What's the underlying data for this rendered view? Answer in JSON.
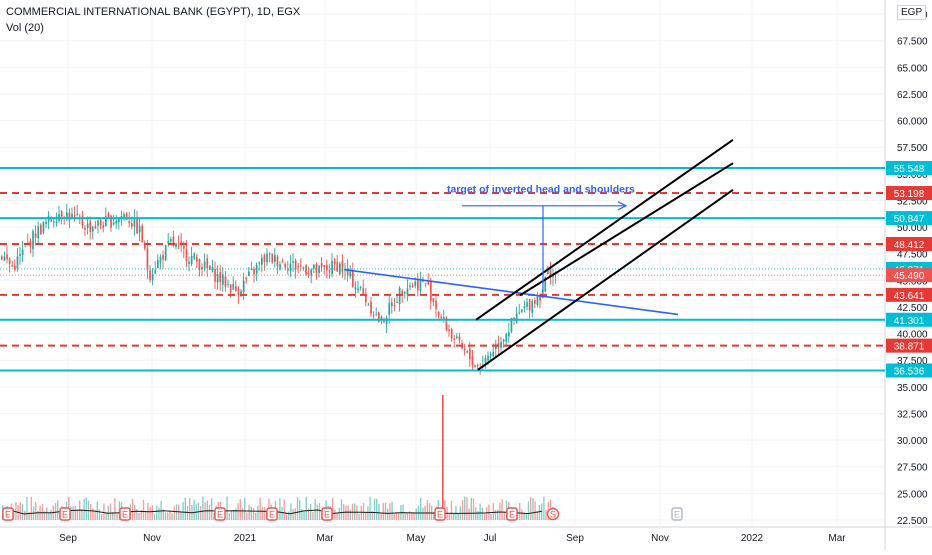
{
  "header": {
    "title": "COMMERCIAL INTERNATIONAL BANK (EGYPT), 1D, EGX",
    "volume_label": "Vol (20)",
    "currency": "EGP"
  },
  "colors": {
    "up": "#26a69a",
    "down": "#ef5350",
    "support_line": "#00bcd4",
    "resistance_line": "#e53935",
    "channel": "#000000",
    "neckline": "#2962ff",
    "annotation": "#2962ff",
    "volume_spike": "#ef5350"
  },
  "annotation": {
    "text": "target of inverted head and shoulders"
  },
  "chart_data": {
    "type": "candlestick",
    "title": "COMMERCIAL INTERNATIONAL BANK (EGYPT), 1D, EGX",
    "xlabel": "",
    "ylabel": "",
    "ylim": [
      22.0,
      70.0
    ],
    "y_ticks": [
      "22.500",
      "25.000",
      "27.500",
      "30.000",
      "32.500",
      "35.000",
      "37.500",
      "40.000",
      "42.500",
      "45.000",
      "47.500",
      "50.000",
      "52.500",
      "55.000",
      "57.500",
      "60.000",
      "62.500",
      "65.000",
      "67.500",
      "70.000"
    ],
    "x_ticks": [
      "Sep",
      "Nov",
      "2021",
      "Mar",
      "May",
      "Jul",
      "Sep",
      "Nov",
      "2022",
      "Mar"
    ],
    "grid": true,
    "horizontal_levels": [
      {
        "label": "55.548",
        "value": 55.548,
        "style": "solid",
        "color": "#00bcd4"
      },
      {
        "label": "53.198",
        "value": 53.198,
        "style": "dashed",
        "color": "#e53935"
      },
      {
        "label": "50.847",
        "value": 50.847,
        "style": "solid",
        "color": "#00bcd4"
      },
      {
        "label": "48.412",
        "value": 48.412,
        "style": "dashed",
        "color": "#e53935"
      },
      {
        "label": "43.641",
        "value": 43.641,
        "style": "dashed",
        "color": "#e53935"
      },
      {
        "label": "41.301",
        "value": 41.301,
        "style": "solid",
        "color": "#00bcd4"
      },
      {
        "label": "38.871",
        "value": 38.871,
        "style": "dashed",
        "color": "#e53935"
      },
      {
        "label": "36.536",
        "value": 36.536,
        "style": "solid",
        "color": "#00bcd4"
      }
    ],
    "price_labels": [
      {
        "label": "46.071",
        "value": 46.071,
        "color": "#00bcd4"
      },
      {
        "label": "45.490",
        "value": 45.49,
        "color": "#ef5350"
      }
    ],
    "trendlines": {
      "neckline": [
        [
          "Mar",
          46.0
        ],
        [
          "Nov",
          41.8
        ]
      ],
      "channel_upper": [
        [
          "Jun",
          41.5
        ],
        [
          "Mar",
          58.2
        ]
      ],
      "channel_middle": [
        [
          "Jul",
          43.6
        ],
        [
          "Mar",
          56.0
        ]
      ],
      "channel_lower": [
        [
          "Jun",
          36.6
        ],
        [
          "Mar",
          53.5
        ]
      ]
    },
    "series": [
      {
        "name": "",
        "anchors": [
          {
            "x": "Aug",
            "close": 47.5
          },
          {
            "x": "Aug",
            "close": 46.2
          },
          {
            "x": "Aug",
            "close": 49.5
          },
          {
            "x": "Aug",
            "close": 51.5
          },
          {
            "x": "Sep",
            "close": 50.0
          },
          {
            "x": "Oct",
            "close": 50.5
          },
          {
            "x": "Oct",
            "close": 51.2
          },
          {
            "x": "Oct",
            "close": 49.5
          },
          {
            "x": "Nov",
            "close": 45.5
          },
          {
            "x": "Nov",
            "close": 48.5
          },
          {
            "x": "Dec",
            "close": 46.5
          },
          {
            "x": "Dec",
            "close": 44.0
          },
          {
            "x": "2021",
            "close": 47.2
          },
          {
            "x": "Jan",
            "close": 46.5
          },
          {
            "x": "Feb",
            "close": 45.8
          },
          {
            "x": "Mar",
            "close": 46.5
          },
          {
            "x": "Mar",
            "close": 44.0
          },
          {
            "x": "Apr",
            "close": 41.0
          },
          {
            "x": "Apr",
            "close": 44.5
          },
          {
            "x": "Apr",
            "close": 44.8
          },
          {
            "x": "May",
            "close": 41.5
          },
          {
            "x": "May",
            "close": 38.8
          },
          {
            "x": "Jun",
            "close": 36.8
          },
          {
            "x": "Jun",
            "close": 39.5
          },
          {
            "x": "Jul",
            "close": 42.0
          },
          {
            "x": "Jul",
            "close": 43.8
          },
          {
            "x": "Aug",
            "close": 46.0
          },
          {
            "x": "Aug",
            "close": 45.5
          }
        ]
      }
    ],
    "volume": {
      "name": "Vol (20)",
      "spike_at": "May"
    },
    "event_markers": [
      "E",
      "E",
      "E",
      "E",
      "E",
      "E",
      "E",
      "E",
      "S",
      "E"
    ]
  }
}
